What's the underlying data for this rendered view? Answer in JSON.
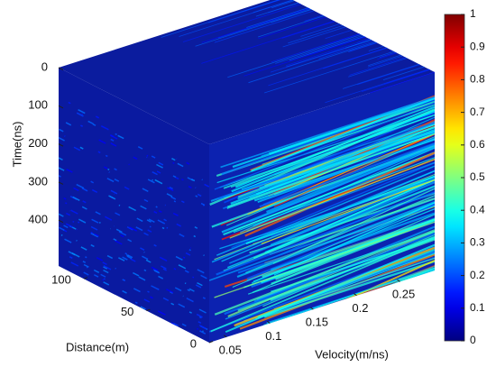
{
  "chart_data": {
    "type": "volume",
    "x_label": "Velocity(m/ns)",
    "y_label": "Distance(m)",
    "z_label": "Time(ns)",
    "xlim": [
      0.03,
      0.29
    ],
    "xticks": [
      0.05,
      0.1,
      0.15,
      0.2,
      0.25
    ],
    "ylim": [
      0,
      120
    ],
    "yticks": [
      0,
      50,
      100
    ],
    "zlim": [
      0,
      520
    ],
    "zticks": [
      0,
      100,
      200,
      300,
      400
    ],
    "colormap": "jet",
    "clim": [
      0,
      1
    ],
    "cticks": [
      0,
      0.1,
      0.2,
      0.3,
      0.4,
      0.5,
      0.6,
      0.7,
      0.8,
      0.9,
      1
    ]
  }
}
